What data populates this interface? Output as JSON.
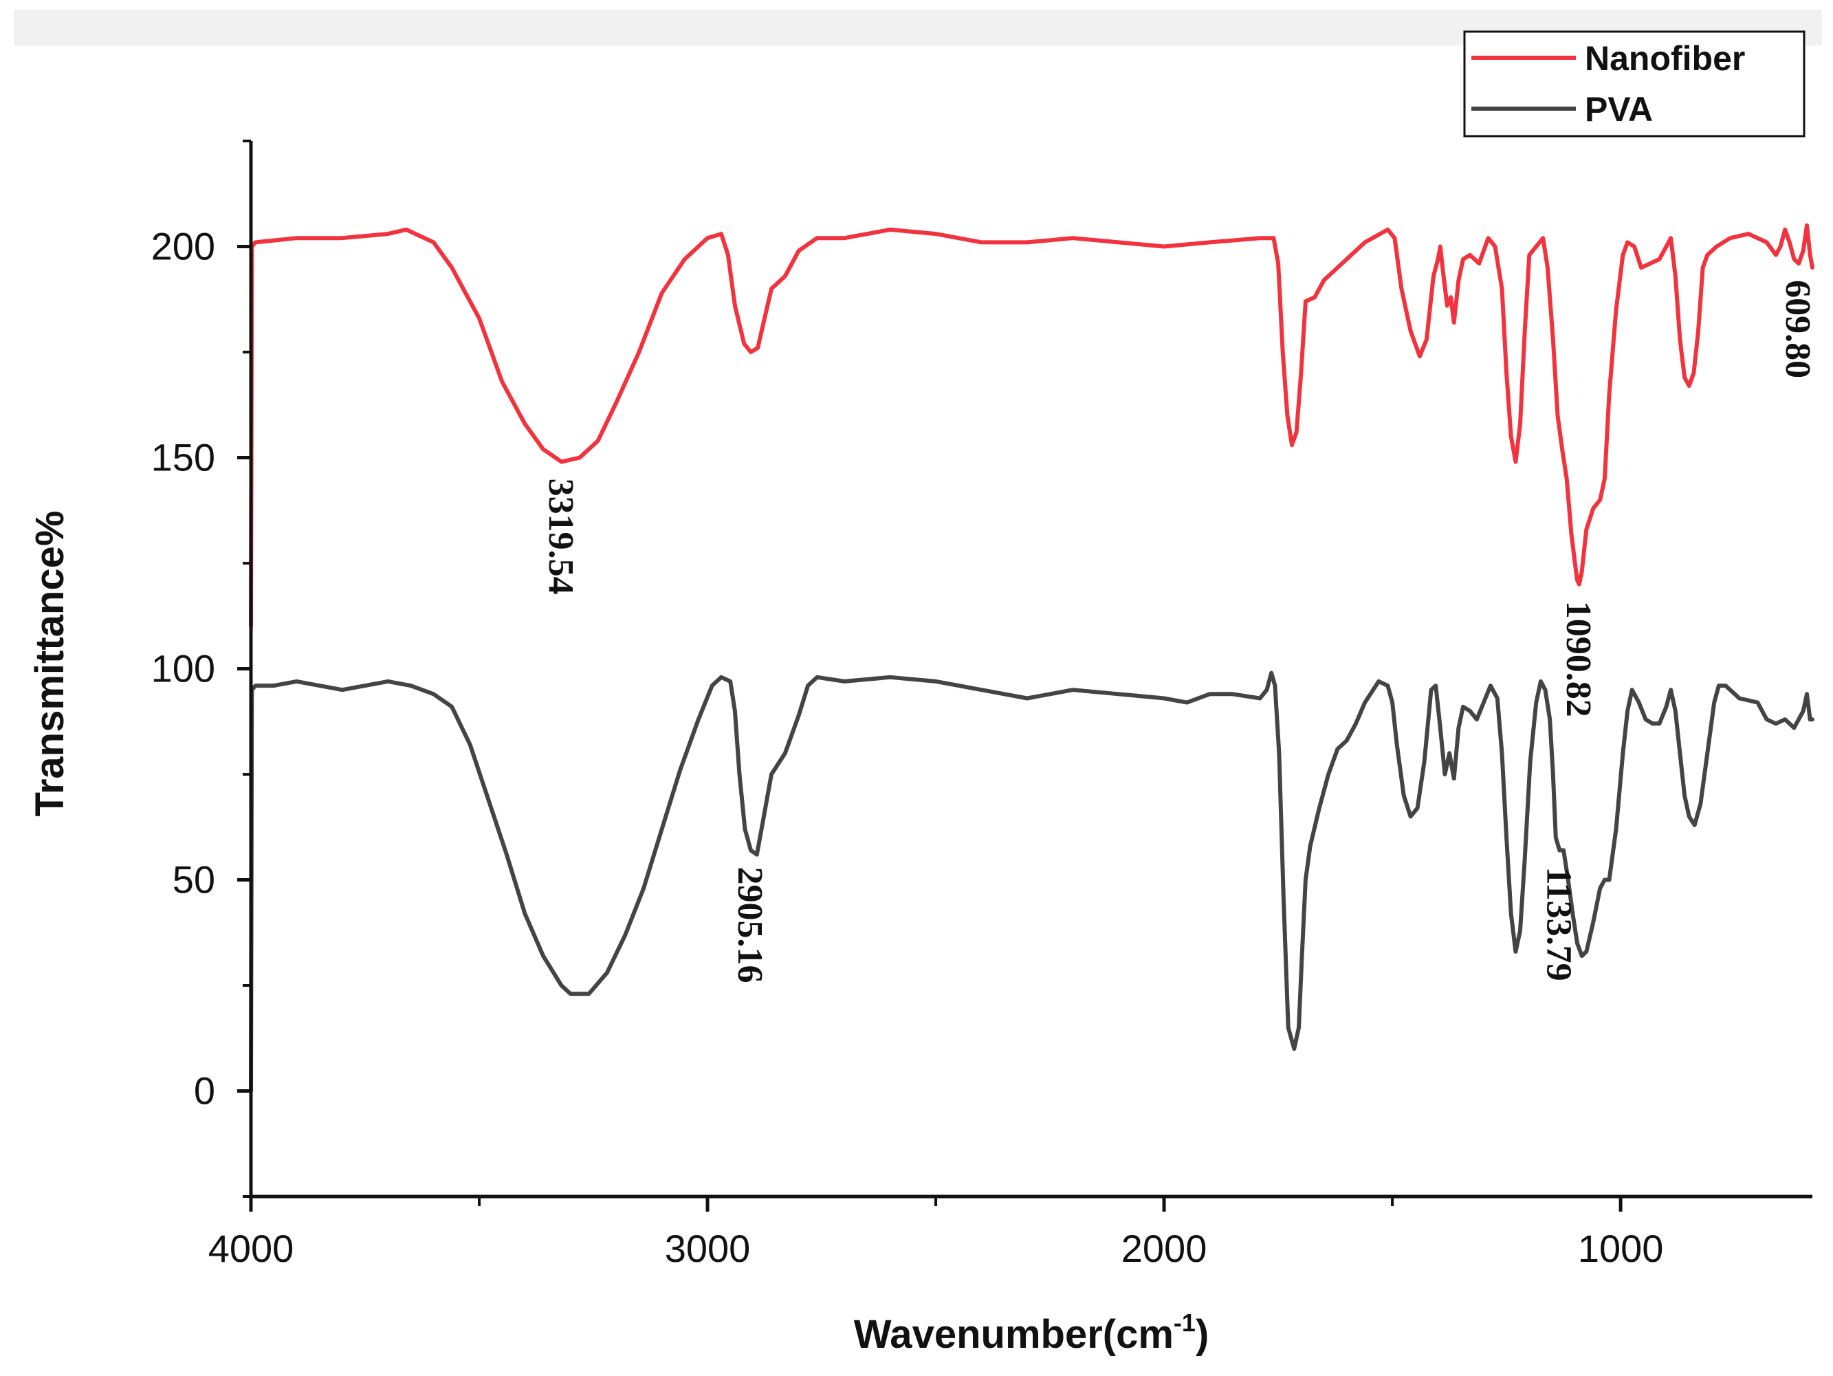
{
  "chart_data": {
    "type": "line",
    "xlabel": "Wavenumber(cm",
    "xlabel_sup": "-1",
    "xlabel_close": ")",
    "ylabel": "Transmittance%",
    "xlim": [
      4000,
      580
    ],
    "ylim": [
      -25,
      225
    ],
    "x_ticks": [
      "4000",
      "3000",
      "2000",
      "1000"
    ],
    "x_tick_values": [
      4000,
      3000,
      2000,
      1000
    ],
    "y_ticks": [
      "0",
      "50",
      "100",
      "150",
      "200"
    ],
    "y_tick_values": [
      0,
      50,
      100,
      150,
      200
    ],
    "legend_position": "top-right",
    "series": [
      {
        "name": "Nanofiber",
        "color": "#f2333d",
        "points": [
          [
            4000,
            110
          ],
          [
            3998,
            200
          ],
          [
            3990,
            201
          ],
          [
            3900,
            202
          ],
          [
            3800,
            202
          ],
          [
            3700,
            203
          ],
          [
            3660,
            204
          ],
          [
            3600,
            201
          ],
          [
            3560,
            195
          ],
          [
            3500,
            183
          ],
          [
            3450,
            168
          ],
          [
            3400,
            158
          ],
          [
            3360,
            152
          ],
          [
            3319.54,
            149
          ],
          [
            3280,
            150
          ],
          [
            3240,
            154
          ],
          [
            3200,
            163
          ],
          [
            3150,
            175
          ],
          [
            3100,
            189
          ],
          [
            3050,
            197
          ],
          [
            3000,
            202
          ],
          [
            2970,
            203
          ],
          [
            2955,
            198
          ],
          [
            2940,
            186
          ],
          [
            2920,
            177
          ],
          [
            2905,
            175
          ],
          [
            2890,
            176
          ],
          [
            2875,
            183
          ],
          [
            2860,
            190
          ],
          [
            2830,
            193
          ],
          [
            2800,
            199
          ],
          [
            2760,
            202
          ],
          [
            2700,
            202
          ],
          [
            2600,
            204
          ],
          [
            2500,
            203
          ],
          [
            2400,
            201
          ],
          [
            2300,
            201
          ],
          [
            2200,
            202
          ],
          [
            2100,
            201
          ],
          [
            2000,
            200
          ],
          [
            1900,
            201
          ],
          [
            1790,
            202
          ],
          [
            1760,
            202
          ],
          [
            1750,
            196
          ],
          [
            1740,
            175
          ],
          [
            1730,
            160
          ],
          [
            1720,
            153
          ],
          [
            1710,
            156
          ],
          [
            1700,
            170
          ],
          [
            1690,
            187
          ],
          [
            1670,
            188
          ],
          [
            1650,
            192
          ],
          [
            1610,
            196
          ],
          [
            1560,
            201
          ],
          [
            1510,
            204
          ],
          [
            1495,
            202
          ],
          [
            1480,
            190
          ],
          [
            1460,
            180
          ],
          [
            1440,
            174
          ],
          [
            1425,
            178
          ],
          [
            1410,
            193
          ],
          [
            1400,
            197
          ],
          [
            1395,
            200
          ],
          [
            1390,
            195
          ],
          [
            1380,
            186
          ],
          [
            1372,
            188
          ],
          [
            1365,
            182
          ],
          [
            1355,
            192
          ],
          [
            1345,
            197
          ],
          [
            1330,
            198
          ],
          [
            1310,
            196
          ],
          [
            1290,
            202
          ],
          [
            1275,
            200
          ],
          [
            1260,
            190
          ],
          [
            1250,
            170
          ],
          [
            1240,
            155
          ],
          [
            1230,
            149
          ],
          [
            1220,
            158
          ],
          [
            1210,
            180
          ],
          [
            1200,
            198
          ],
          [
            1185,
            200
          ],
          [
            1170,
            202
          ],
          [
            1160,
            195
          ],
          [
            1148,
            178
          ],
          [
            1138,
            160
          ],
          [
            1128,
            152
          ],
          [
            1118,
            145
          ],
          [
            1108,
            132
          ],
          [
            1100,
            125
          ],
          [
            1095,
            121
          ],
          [
            1090.82,
            120
          ],
          [
            1085,
            123
          ],
          [
            1075,
            133
          ],
          [
            1060,
            138
          ],
          [
            1045,
            140
          ],
          [
            1035,
            145
          ],
          [
            1025,
            165
          ],
          [
            1010,
            185
          ],
          [
            995,
            198
          ],
          [
            985,
            201
          ],
          [
            970,
            200
          ],
          [
            955,
            195
          ],
          [
            935,
            196
          ],
          [
            915,
            197
          ],
          [
            900,
            200
          ],
          [
            890,
            202
          ],
          [
            880,
            193
          ],
          [
            870,
            178
          ],
          [
            860,
            169
          ],
          [
            850,
            167
          ],
          [
            840,
            170
          ],
          [
            830,
            180
          ],
          [
            820,
            195
          ],
          [
            810,
            198
          ],
          [
            790,
            200
          ],
          [
            760,
            202
          ],
          [
            720,
            203
          ],
          [
            680,
            201
          ],
          [
            660,
            198
          ],
          [
            650,
            200
          ],
          [
            640,
            204
          ],
          [
            630,
            201
          ],
          [
            620,
            197
          ],
          [
            609.8,
            196
          ],
          [
            600,
            199
          ],
          [
            592,
            205
          ],
          [
            585,
            198
          ],
          [
            580,
            195
          ]
        ]
      },
      {
        "name": "PVA",
        "color": "#444444",
        "points": [
          [
            4000,
            0
          ],
          [
            3998,
            95
          ],
          [
            3990,
            96
          ],
          [
            3950,
            96
          ],
          [
            3900,
            97
          ],
          [
            3800,
            95
          ],
          [
            3750,
            96
          ],
          [
            3700,
            97
          ],
          [
            3650,
            96
          ],
          [
            3600,
            94
          ],
          [
            3560,
            91
          ],
          [
            3520,
            82
          ],
          [
            3480,
            69
          ],
          [
            3440,
            56
          ],
          [
            3400,
            42
          ],
          [
            3360,
            32
          ],
          [
            3320,
            25
          ],
          [
            3300,
            23
          ],
          [
            3260,
            23
          ],
          [
            3220,
            28
          ],
          [
            3180,
            37
          ],
          [
            3140,
            48
          ],
          [
            3100,
            62
          ],
          [
            3060,
            76
          ],
          [
            3020,
            88
          ],
          [
            2990,
            96
          ],
          [
            2970,
            98
          ],
          [
            2950,
            97
          ],
          [
            2940,
            90
          ],
          [
            2930,
            75
          ],
          [
            2918,
            62
          ],
          [
            2905.16,
            57
          ],
          [
            2892,
            56
          ],
          [
            2880,
            63
          ],
          [
            2860,
            75
          ],
          [
            2830,
            80
          ],
          [
            2800,
            89
          ],
          [
            2780,
            96
          ],
          [
            2760,
            98
          ],
          [
            2700,
            97
          ],
          [
            2600,
            98
          ],
          [
            2500,
            97
          ],
          [
            2400,
            95
          ],
          [
            2300,
            93
          ],
          [
            2200,
            95
          ],
          [
            2100,
            94
          ],
          [
            2000,
            93
          ],
          [
            1950,
            92
          ],
          [
            1900,
            94
          ],
          [
            1850,
            94
          ],
          [
            1790,
            93
          ],
          [
            1775,
            95
          ],
          [
            1765,
            99
          ],
          [
            1757,
            96
          ],
          [
            1748,
            80
          ],
          [
            1738,
            45
          ],
          [
            1728,
            15
          ],
          [
            1715,
            10
          ],
          [
            1705,
            15
          ],
          [
            1698,
            32
          ],
          [
            1690,
            50
          ],
          [
            1680,
            58
          ],
          [
            1660,
            67
          ],
          [
            1640,
            75
          ],
          [
            1620,
            81
          ],
          [
            1600,
            83
          ],
          [
            1580,
            87
          ],
          [
            1560,
            92
          ],
          [
            1530,
            97
          ],
          [
            1510,
            96
          ],
          [
            1500,
            92
          ],
          [
            1490,
            82
          ],
          [
            1475,
            70
          ],
          [
            1460,
            65
          ],
          [
            1445,
            67
          ],
          [
            1430,
            78
          ],
          [
            1415,
            95
          ],
          [
            1405,
            96
          ],
          [
            1395,
            86
          ],
          [
            1385,
            75
          ],
          [
            1375,
            80
          ],
          [
            1365,
            74
          ],
          [
            1355,
            86
          ],
          [
            1345,
            91
          ],
          [
            1330,
            90
          ],
          [
            1315,
            88
          ],
          [
            1300,
            92
          ],
          [
            1285,
            96
          ],
          [
            1270,
            93
          ],
          [
            1260,
            80
          ],
          [
            1250,
            60
          ],
          [
            1240,
            42
          ],
          [
            1230,
            33
          ],
          [
            1220,
            38
          ],
          [
            1210,
            55
          ],
          [
            1198,
            78
          ],
          [
            1185,
            92
          ],
          [
            1175,
            97
          ],
          [
            1165,
            95
          ],
          [
            1155,
            88
          ],
          [
            1148,
            75
          ],
          [
            1142,
            60
          ],
          [
            1133.79,
            57
          ],
          [
            1125,
            57
          ],
          [
            1115,
            50
          ],
          [
            1105,
            42
          ],
          [
            1095,
            35
          ],
          [
            1085,
            32
          ],
          [
            1075,
            33
          ],
          [
            1060,
            40
          ],
          [
            1045,
            48
          ],
          [
            1035,
            50
          ],
          [
            1025,
            50
          ],
          [
            1010,
            62
          ],
          [
            995,
            80
          ],
          [
            985,
            90
          ],
          [
            975,
            95
          ],
          [
            960,
            92
          ],
          [
            945,
            88
          ],
          [
            930,
            87
          ],
          [
            915,
            87
          ],
          [
            900,
            91
          ],
          [
            890,
            95
          ],
          [
            880,
            90
          ],
          [
            870,
            80
          ],
          [
            860,
            70
          ],
          [
            850,
            65
          ],
          [
            838,
            63
          ],
          [
            825,
            68
          ],
          [
            810,
            80
          ],
          [
            795,
            92
          ],
          [
            785,
            96
          ],
          [
            770,
            96
          ],
          [
            740,
            93
          ],
          [
            700,
            92
          ],
          [
            680,
            88
          ],
          [
            660,
            87
          ],
          [
            640,
            88
          ],
          [
            620,
            86
          ],
          [
            600,
            90
          ],
          [
            592,
            94
          ],
          [
            585,
            88
          ],
          [
            580,
            88
          ]
        ]
      }
    ],
    "annotations": [
      {
        "text": "3319.54",
        "x": 3319.54,
        "y": 149,
        "series": "Nanofiber"
      },
      {
        "text": "1090.82",
        "x": 1090.82,
        "y": 120,
        "series": "Nanofiber"
      },
      {
        "text": "609.80",
        "x": 609.8,
        "y": 196,
        "series": "Nanofiber"
      },
      {
        "text": "2905.16",
        "x": 2905.16,
        "y": 57,
        "series": "PVA"
      },
      {
        "text": "1133.79",
        "x": 1133.79,
        "y": 57,
        "series": "PVA"
      }
    ]
  }
}
